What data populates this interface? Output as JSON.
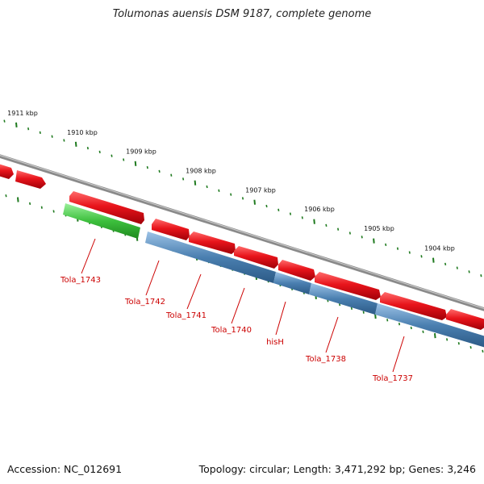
{
  "title": "Tolumonas auensis DSM 9187, complete genome",
  "footer": {
    "accession": "Accession: NC_012691",
    "summary": "Topology: circular; Length: 3,471,292 bp; Genes: 3,246"
  },
  "colors": {
    "forward_gene": "#e8141b",
    "reverse_gene": "#4a7fb0",
    "rna_gene": "#3dbf3d",
    "backbone": "#8a8a8a",
    "ticks": "#1f7a1f",
    "label": "#cc0000"
  },
  "scale": {
    "unit": "kbp",
    "ticks": [
      {
        "kbp": 1911,
        "label": "1911 kbp"
      },
      {
        "kbp": 1910,
        "label": "1910 kbp"
      },
      {
        "kbp": 1909,
        "label": "1909 kbp"
      },
      {
        "kbp": 1908,
        "label": "1908 kbp"
      },
      {
        "kbp": 1907,
        "label": "1907 kbp"
      },
      {
        "kbp": 1906,
        "label": "1906 kbp"
      },
      {
        "kbp": 1905,
        "label": "1905 kbp"
      },
      {
        "kbp": 1904,
        "label": "1904 kbp"
      }
    ]
  },
  "labeled_genes": [
    {
      "name": "Tola_1743",
      "strand": "rna"
    },
    {
      "name": "Tola_1742",
      "strand": "reverse"
    },
    {
      "name": "Tola_1741",
      "strand": "reverse"
    },
    {
      "name": "Tola_1740",
      "strand": "reverse"
    },
    {
      "name": "hisH",
      "strand": "reverse"
    },
    {
      "name": "Tola_1738",
      "strand": "reverse"
    },
    {
      "name": "Tola_1737",
      "strand": "reverse"
    }
  ]
}
